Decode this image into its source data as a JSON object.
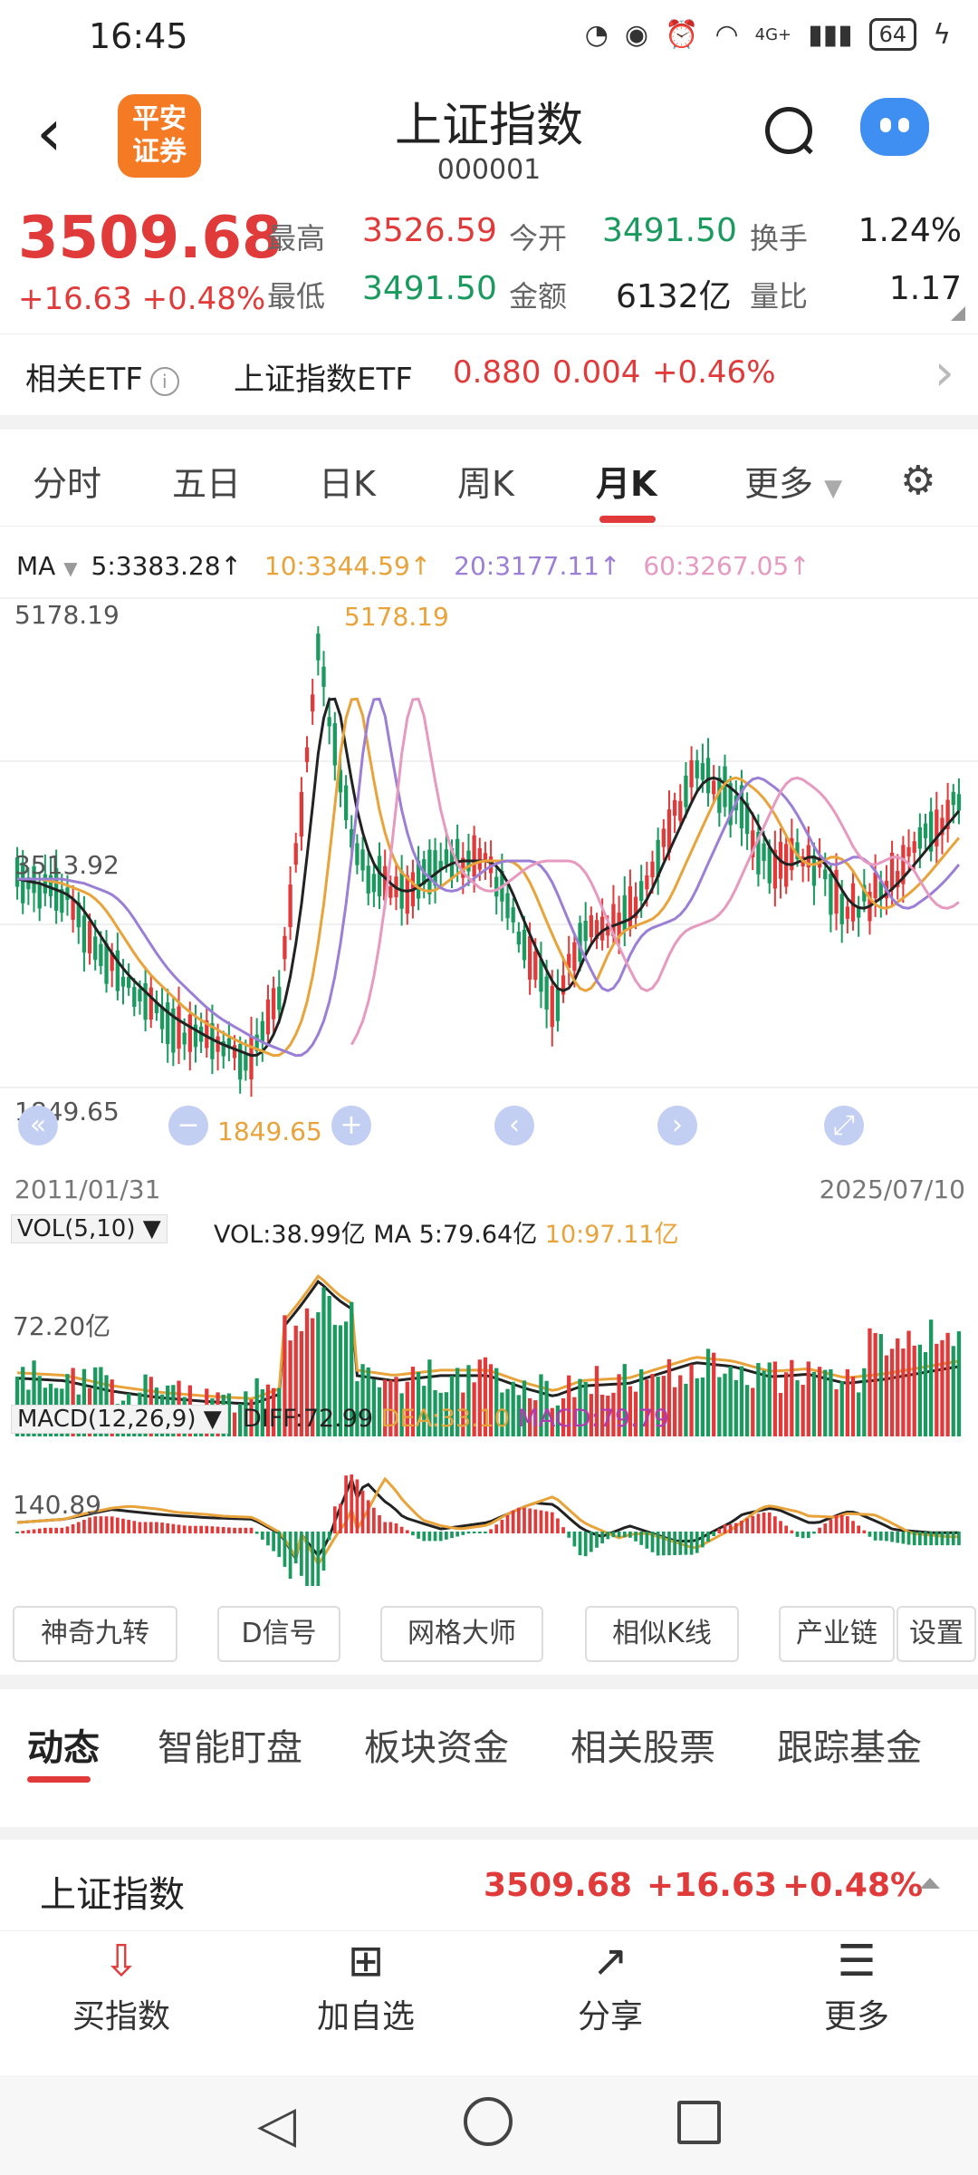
{
  "status_bar": {
    "time": "16:45",
    "network": "4G+",
    "battery": "64"
  },
  "header": {
    "logo_line1": "平安",
    "logo_line2": "证券",
    "title": "上证指数",
    "code": "000001"
  },
  "quote": {
    "price": "3509.68",
    "change": "+16.63",
    "change_pct": "+0.48%",
    "high_label": "最高",
    "high": "3526.59",
    "low_label": "最低",
    "low": "3491.50",
    "open_label": "今开",
    "open": "3491.50",
    "amount_label": "金额",
    "amount": "6132亿",
    "turnover_label": "换手",
    "turnover": "1.24%",
    "volratio_label": "量比",
    "volratio": "1.17"
  },
  "etf": {
    "label": "相关ETF",
    "name": "上证指数ETF",
    "price": "0.880",
    "change": "0.004",
    "change_pct": "+0.46%"
  },
  "tabs": [
    "分时",
    "五日",
    "日K",
    "周K",
    "月K",
    "更多"
  ],
  "ma_legend": {
    "label": "MA",
    "ma5": "5:3383.28↑",
    "ma10": "10:3344.59↑",
    "ma20": "20:3177.11↑",
    "ma60": "60:3267.05↑"
  },
  "colors": {
    "up": "#e03a3a",
    "down": "#1a9a5e",
    "ma5": "#222222",
    "ma10": "#e8a33a",
    "ma20": "#9b7fd6",
    "ma60": "#e69ac0"
  },
  "kline": {
    "y_top": "5178.19",
    "y_mid": "3513.92",
    "y_low": "1849.65",
    "peak_label": "5178.19",
    "trough_label": "1849.65",
    "start_date": "2011/01/31",
    "end_date": "2025/07/10"
  },
  "volume": {
    "indicator": "VOL(5,10)",
    "vol": "VOL:38.99亿",
    "ma5": "MA 5:79.64亿",
    "ma10": "10:97.11亿",
    "axis": "72.20亿"
  },
  "macd": {
    "indicator": "MACD(12,26,9)",
    "diff": "DIFF:72.99",
    "dea": "DEA:33.10",
    "macd": "MACD:79.79",
    "axis": "140.89"
  },
  "tools": [
    "神奇九转",
    "D信号",
    "网格大师",
    "相似K线",
    "产业链",
    "设置"
  ],
  "subtabs": [
    "动态",
    "智能盯盘",
    "板块资金",
    "相关股票",
    "跟踪基金"
  ],
  "index_row": {
    "name": "上证指数",
    "price": "3509.68",
    "change": "+16.63",
    "change_pct": "+0.48%"
  },
  "actions": [
    "买指数",
    "加自选",
    "分享",
    "更多"
  ]
}
